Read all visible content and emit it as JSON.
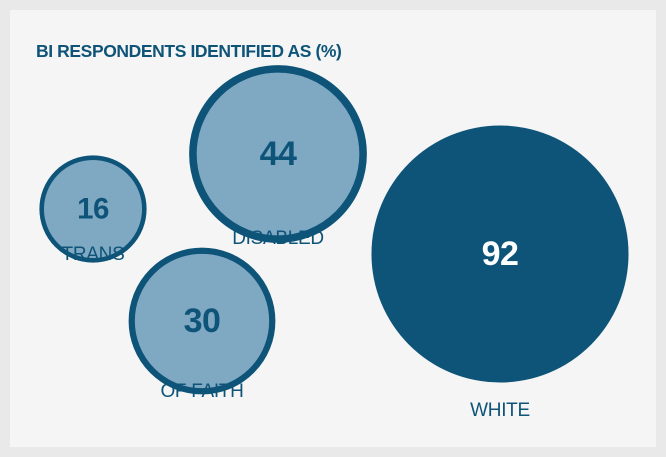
{
  "chart_data": {
    "type": "bubble",
    "title": "BI RESPONDENTS IDENTIFIED AS (%)",
    "categories": [
      "TRANS",
      "DISABLED",
      "OF FAITH",
      "WHITE"
    ],
    "values": [
      16,
      44,
      30,
      92
    ],
    "value_labels": [
      "16",
      "44",
      "30",
      "92"
    ],
    "colors": {
      "outline": "#0e5478",
      "light_fill": "#7fa8c3",
      "dark_fill": "#0e5478",
      "title": "#0e5478",
      "background": "#f5f5f5",
      "border": "#e9e9e9"
    },
    "legend": "none",
    "grid": false
  }
}
